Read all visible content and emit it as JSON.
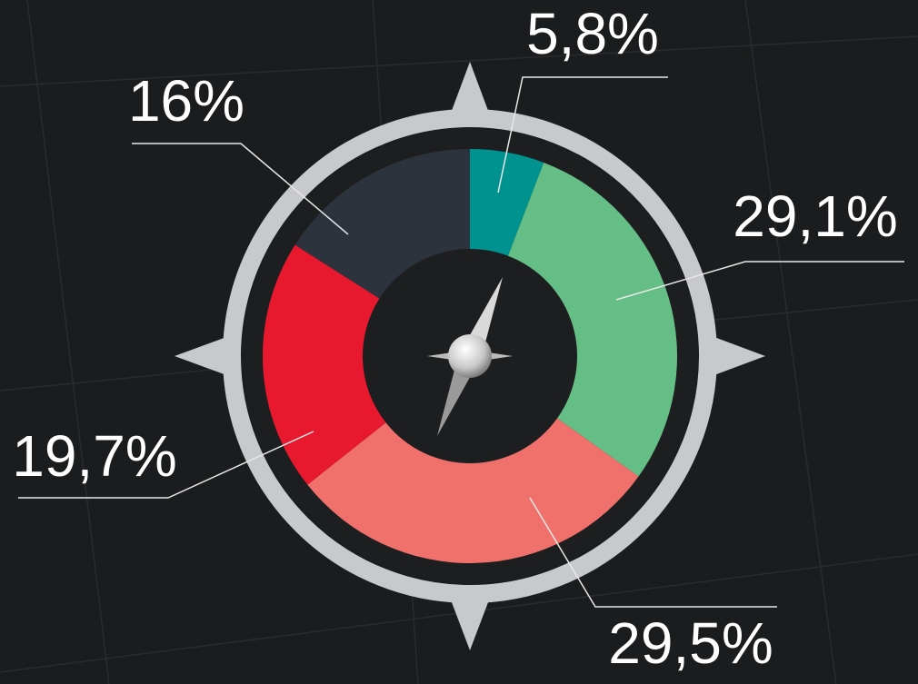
{
  "chart_data": {
    "type": "donut",
    "values": [
      5.8,
      29.1,
      29.5,
      19.7,
      16
    ],
    "value_labels": [
      "5,8%",
      "29,1%",
      "29,5%",
      "19,7%",
      "16%"
    ],
    "colors": [
      "#00928e",
      "#66be87",
      "#f0706b",
      "#e8192f",
      "#2c333c"
    ]
  }
}
